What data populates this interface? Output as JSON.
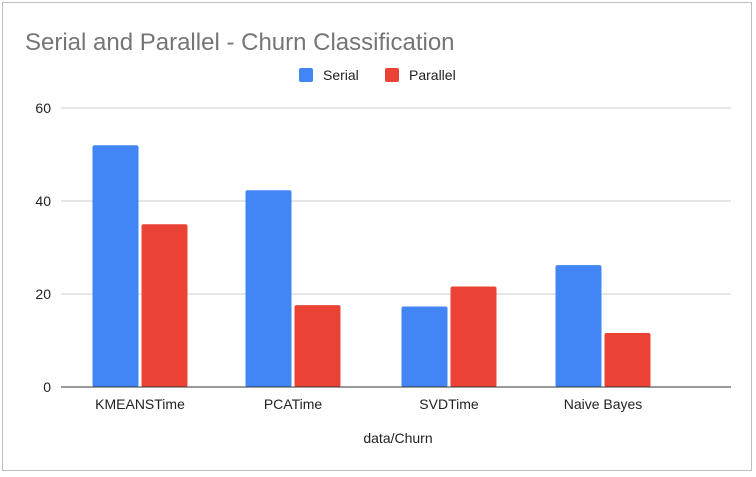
{
  "chart_data": {
    "type": "bar",
    "title": "Serial and Parallel - Churn Classification",
    "xlabel": "data/Churn",
    "ylabel": "",
    "categories": [
      "KMEANSTime",
      "PCATime",
      "SVDTime",
      "Naive Bayes"
    ],
    "series": [
      {
        "name": "Serial",
        "color": "#4285f4",
        "values": [
          52.0,
          42.3,
          17.3,
          26.2
        ]
      },
      {
        "name": "Parallel",
        "color": "#ea4335",
        "values": [
          35.0,
          17.6,
          21.6,
          11.6
        ]
      }
    ],
    "ylim": [
      0,
      60
    ],
    "yticks": [
      "0",
      "20",
      "40",
      "60"
    ],
    "grid": true,
    "legend_position": "top"
  }
}
